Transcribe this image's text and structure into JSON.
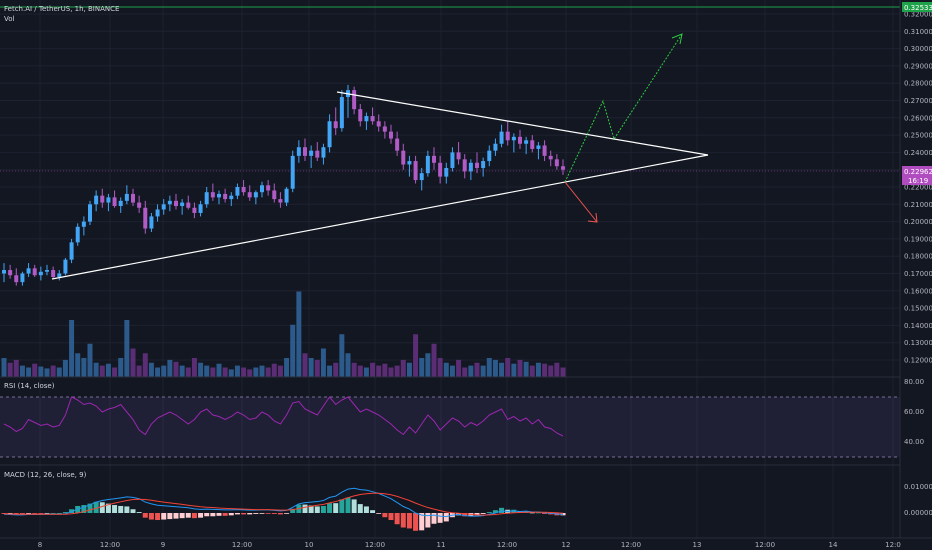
{
  "header": {
    "symbol_line": "Fetch.AI / TetherUS, 1h, BINANCE",
    "volume_label": "Vol"
  },
  "rsi": {
    "title": "RSI (14, close)",
    "ticks": [
      "80.00",
      "60.00",
      "40.00"
    ],
    "upper_band": 70,
    "lower_band": 30
  },
  "macd": {
    "title": "MACD (12, 26, close, 9)",
    "ticks": [
      "0.01000",
      "0.00000"
    ]
  },
  "price_axis": {
    "ticks": [
      "0.32000",
      "0.31000",
      "0.30000",
      "0.29000",
      "0.28000",
      "0.27000",
      "0.26000",
      "0.25000",
      "0.24000",
      "0.23000",
      "0.22000",
      "0.21000",
      "0.20000",
      "0.19000",
      "0.18000",
      "0.17000",
      "0.16000",
      "0.15000",
      "0.14000",
      "0.13000",
      "0.12000"
    ],
    "last_price_tag": "0.22962",
    "countdown_tag": "16:19",
    "top_line_tag": "0.32533",
    "colors": {
      "last_price": "#b04cc0",
      "top_line": "#1fa34a",
      "axis_bg": "#131722"
    }
  },
  "time_axis": {
    "labels": [
      "8",
      "12:00",
      "9",
      "12:00",
      "10",
      "12:00",
      "11",
      "12:00",
      "12",
      "12:00",
      "13",
      "12:00",
      "14",
      "12:0"
    ]
  },
  "colors": {
    "up": "#42a5f5",
    "down": "#b15bc6",
    "vol_up": "#2c5a8a",
    "vol_down": "#5b2d74",
    "rsi": "#9c27b0",
    "macd": "#2196f3",
    "signal": "#f44336",
    "hist_up": "#26a69a",
    "hist_down": "#ef5350",
    "triangle": "#ffffff",
    "bull_arrow": "#2ecc40",
    "bear_arrow": "#ef5350"
  },
  "chart_data": {
    "type": "candlestick",
    "symbol": "Fetch.AI / TetherUS",
    "interval": "1h",
    "exchange": "BINANCE",
    "price_range": [
      0.115,
      0.328
    ],
    "candles_ohlc": [
      [
        0.17,
        0.176,
        0.165,
        0.172
      ],
      [
        0.172,
        0.175,
        0.167,
        0.169
      ],
      [
        0.169,
        0.173,
        0.163,
        0.165
      ],
      [
        0.165,
        0.171,
        0.163,
        0.17
      ],
      [
        0.17,
        0.176,
        0.168,
        0.173
      ],
      [
        0.173,
        0.175,
        0.168,
        0.169
      ],
      [
        0.169,
        0.174,
        0.166,
        0.171
      ],
      [
        0.171,
        0.175,
        0.169,
        0.172
      ],
      [
        0.172,
        0.174,
        0.167,
        0.168
      ],
      [
        0.168,
        0.172,
        0.166,
        0.17
      ],
      [
        0.17,
        0.179,
        0.169,
        0.178
      ],
      [
        0.178,
        0.19,
        0.176,
        0.188
      ],
      [
        0.188,
        0.199,
        0.186,
        0.197
      ],
      [
        0.197,
        0.203,
        0.192,
        0.2
      ],
      [
        0.2,
        0.212,
        0.198,
        0.21
      ],
      [
        0.21,
        0.218,
        0.206,
        0.215
      ],
      [
        0.215,
        0.219,
        0.208,
        0.211
      ],
      [
        0.211,
        0.216,
        0.206,
        0.214
      ],
      [
        0.214,
        0.218,
        0.208,
        0.209
      ],
      [
        0.209,
        0.214,
        0.205,
        0.212
      ],
      [
        0.212,
        0.221,
        0.21,
        0.216
      ],
      [
        0.216,
        0.219,
        0.209,
        0.211
      ],
      [
        0.211,
        0.215,
        0.205,
        0.208
      ],
      [
        0.208,
        0.212,
        0.193,
        0.196
      ],
      [
        0.196,
        0.205,
        0.194,
        0.203
      ],
      [
        0.203,
        0.21,
        0.2,
        0.207
      ],
      [
        0.207,
        0.213,
        0.204,
        0.21
      ],
      [
        0.21,
        0.215,
        0.206,
        0.212
      ],
      [
        0.212,
        0.216,
        0.207,
        0.209
      ],
      [
        0.209,
        0.213,
        0.204,
        0.211
      ],
      [
        0.211,
        0.215,
        0.207,
        0.208
      ],
      [
        0.208,
        0.211,
        0.202,
        0.205
      ],
      [
        0.205,
        0.212,
        0.203,
        0.21
      ],
      [
        0.21,
        0.22,
        0.208,
        0.217
      ],
      [
        0.217,
        0.222,
        0.212,
        0.214
      ],
      [
        0.214,
        0.218,
        0.21,
        0.216
      ],
      [
        0.216,
        0.219,
        0.211,
        0.213
      ],
      [
        0.213,
        0.217,
        0.209,
        0.215
      ],
      [
        0.215,
        0.222,
        0.213,
        0.22
      ],
      [
        0.22,
        0.224,
        0.215,
        0.217
      ],
      [
        0.217,
        0.221,
        0.212,
        0.214
      ],
      [
        0.214,
        0.218,
        0.21,
        0.217
      ],
      [
        0.217,
        0.223,
        0.214,
        0.221
      ],
      [
        0.221,
        0.224,
        0.215,
        0.218
      ],
      [
        0.218,
        0.222,
        0.211,
        0.213
      ],
      [
        0.213,
        0.217,
        0.208,
        0.211
      ],
      [
        0.211,
        0.22,
        0.209,
        0.219
      ],
      [
        0.219,
        0.241,
        0.217,
        0.238
      ],
      [
        0.238,
        0.247,
        0.234,
        0.243
      ],
      [
        0.243,
        0.248,
        0.235,
        0.238
      ],
      [
        0.238,
        0.244,
        0.231,
        0.241
      ],
      [
        0.241,
        0.246,
        0.235,
        0.237
      ],
      [
        0.237,
        0.245,
        0.233,
        0.243
      ],
      [
        0.243,
        0.262,
        0.24,
        0.258
      ],
      [
        0.258,
        0.266,
        0.25,
        0.254
      ],
      [
        0.254,
        0.276,
        0.252,
        0.272
      ],
      [
        0.272,
        0.279,
        0.26,
        0.276
      ],
      [
        0.276,
        0.278,
        0.262,
        0.265
      ],
      [
        0.265,
        0.268,
        0.255,
        0.258
      ],
      [
        0.258,
        0.263,
        0.253,
        0.261
      ],
      [
        0.261,
        0.266,
        0.256,
        0.258
      ],
      [
        0.258,
        0.262,
        0.252,
        0.255
      ],
      [
        0.255,
        0.258,
        0.248,
        0.252
      ],
      [
        0.252,
        0.256,
        0.245,
        0.248
      ],
      [
        0.248,
        0.252,
        0.238,
        0.241
      ],
      [
        0.241,
        0.245,
        0.23,
        0.233
      ],
      [
        0.233,
        0.238,
        0.226,
        0.235
      ],
      [
        0.235,
        0.238,
        0.222,
        0.224
      ],
      [
        0.224,
        0.231,
        0.218,
        0.228
      ],
      [
        0.228,
        0.241,
        0.226,
        0.238
      ],
      [
        0.238,
        0.243,
        0.23,
        0.234
      ],
      [
        0.234,
        0.238,
        0.222,
        0.226
      ],
      [
        0.226,
        0.234,
        0.222,
        0.231
      ],
      [
        0.231,
        0.243,
        0.229,
        0.24
      ],
      [
        0.24,
        0.246,
        0.233,
        0.236
      ],
      [
        0.236,
        0.239,
        0.225,
        0.229
      ],
      [
        0.229,
        0.236,
        0.224,
        0.234
      ],
      [
        0.234,
        0.24,
        0.228,
        0.231
      ],
      [
        0.231,
        0.237,
        0.226,
        0.235
      ],
      [
        0.235,
        0.244,
        0.232,
        0.241
      ],
      [
        0.241,
        0.248,
        0.238,
        0.245
      ],
      [
        0.245,
        0.256,
        0.243,
        0.252
      ],
      [
        0.252,
        0.258,
        0.244,
        0.247
      ],
      [
        0.247,
        0.251,
        0.24,
        0.249
      ],
      [
        0.249,
        0.253,
        0.242,
        0.245
      ],
      [
        0.245,
        0.249,
        0.239,
        0.247
      ],
      [
        0.247,
        0.25,
        0.24,
        0.242
      ],
      [
        0.242,
        0.246,
        0.236,
        0.244
      ],
      [
        0.244,
        0.247,
        0.235,
        0.238
      ],
      [
        0.238,
        0.241,
        0.232,
        0.236
      ],
      [
        0.236,
        0.239,
        0.23,
        0.232
      ],
      [
        0.232,
        0.236,
        0.227,
        0.23
      ]
    ],
    "volume_relative": [
      0.2,
      0.15,
      0.18,
      0.12,
      0.1,
      0.14,
      0.11,
      0.09,
      0.12,
      0.1,
      0.18,
      0.6,
      0.25,
      0.2,
      0.35,
      0.15,
      0.12,
      0.14,
      0.1,
      0.2,
      0.6,
      0.3,
      0.12,
      0.25,
      0.15,
      0.1,
      0.12,
      0.18,
      0.16,
      0.12,
      0.1,
      0.2,
      0.15,
      0.12,
      0.1,
      0.14,
      0.1,
      0.08,
      0.12,
      0.1,
      0.08,
      0.1,
      0.12,
      0.1,
      0.14,
      0.12,
      0.2,
      0.55,
      0.9,
      0.25,
      0.2,
      0.18,
      0.3,
      0.12,
      0.15,
      0.45,
      0.25,
      0.15,
      0.12,
      0.1,
      0.15,
      0.12,
      0.14,
      0.1,
      0.12,
      0.18,
      0.15,
      0.45,
      0.2,
      0.25,
      0.35,
      0.2,
      0.15,
      0.12,
      0.18,
      0.1,
      0.12,
      0.15,
      0.12,
      0.2,
      0.18,
      0.15,
      0.2,
      0.14,
      0.18,
      0.16,
      0.12,
      0.15,
      0.14,
      0.12,
      0.15,
      0.1
    ],
    "rsi_values": [
      52,
      50,
      47,
      49,
      55,
      53,
      51,
      52,
      50,
      51,
      58,
      70,
      68,
      65,
      66,
      64,
      60,
      62,
      63,
      65,
      60,
      55,
      48,
      45,
      52,
      56,
      58,
      60,
      58,
      55,
      52,
      55,
      60,
      62,
      58,
      57,
      55,
      57,
      60,
      58,
      55,
      56,
      60,
      58,
      54,
      52,
      58,
      66,
      67,
      62,
      60,
      58,
      64,
      70,
      65,
      68,
      70,
      65,
      60,
      62,
      60,
      58,
      55,
      52,
      48,
      45,
      50,
      46,
      52,
      58,
      54,
      48,
      52,
      56,
      54,
      50,
      53,
      51,
      54,
      58,
      60,
      62,
      55,
      57,
      54,
      56,
      52,
      55,
      50,
      49,
      46,
      44
    ],
    "macd_values": [
      -0.0005,
      -0.0006,
      -0.0007,
      -0.0007,
      -0.0006,
      -0.0006,
      -0.0006,
      -0.0005,
      -0.0005,
      -0.0005,
      -0.0003,
      0.0005,
      0.0015,
      0.0022,
      0.0032,
      0.0042,
      0.0048,
      0.0052,
      0.0055,
      0.0058,
      0.0062,
      0.006,
      0.0055,
      0.0042,
      0.0035,
      0.003,
      0.0028,
      0.0026,
      0.0024,
      0.0022,
      0.002,
      0.0016,
      0.0014,
      0.0015,
      0.0014,
      0.0013,
      0.0012,
      0.0012,
      0.0013,
      0.0012,
      0.0011,
      0.0011,
      0.0012,
      0.0012,
      0.001,
      0.0008,
      0.001,
      0.0022,
      0.0035,
      0.004,
      0.0042,
      0.0044,
      0.0048,
      0.006,
      0.0065,
      0.008,
      0.0092,
      0.0095,
      0.009,
      0.0088,
      0.0082,
      0.0075,
      0.0065,
      0.0055,
      0.004,
      0.0025,
      0.0015,
      0.0,
      -0.0008,
      -0.001,
      -0.0008,
      -0.0012,
      -0.0014,
      -0.0008,
      -0.0006,
      -0.001,
      -0.0012,
      -0.0012,
      -0.001,
      -0.0005,
      0.0,
      0.0008,
      0.0006,
      0.0008,
      0.0006,
      0.0007,
      0.0004,
      0.0004,
      0.0001,
      -0.0001,
      -0.0004,
      -0.0006
    ],
    "signal_values": [
      -0.0003,
      -0.0004,
      -0.0005,
      -0.0005,
      -0.0005,
      -0.0005,
      -0.0005,
      -0.0005,
      -0.0005,
      -0.0005,
      -0.0005,
      -0.0003,
      0.0,
      0.0005,
      0.0012,
      0.0018,
      0.0025,
      0.0032,
      0.0038,
      0.0043,
      0.0048,
      0.0052,
      0.0053,
      0.0052,
      0.0049,
      0.0045,
      0.0042,
      0.0039,
      0.0036,
      0.0033,
      0.003,
      0.0027,
      0.0024,
      0.0022,
      0.0021,
      0.0019,
      0.0018,
      0.0017,
      0.0016,
      0.0015,
      0.0014,
      0.0013,
      0.0013,
      0.0013,
      0.0012,
      0.0011,
      0.0011,
      0.0013,
      0.0017,
      0.0022,
      0.0026,
      0.003,
      0.0033,
      0.0039,
      0.0044,
      0.0051,
      0.0059,
      0.0066,
      0.0071,
      0.0074,
      0.0076,
      0.0076,
      0.0074,
      0.007,
      0.0064,
      0.0056,
      0.0048,
      0.0038,
      0.0029,
      0.0021,
      0.0015,
      0.0009,
      0.0004,
      0.0001,
      -0.0001,
      -0.0003,
      -0.0005,
      -0.0007,
      -0.0008,
      -0.0007,
      -0.0006,
      -0.0003,
      -0.0001,
      0.0001,
      0.0002,
      0.0003,
      0.0003,
      0.0003,
      0.0003,
      0.0002,
      0.0001,
      -0.0001
    ]
  }
}
